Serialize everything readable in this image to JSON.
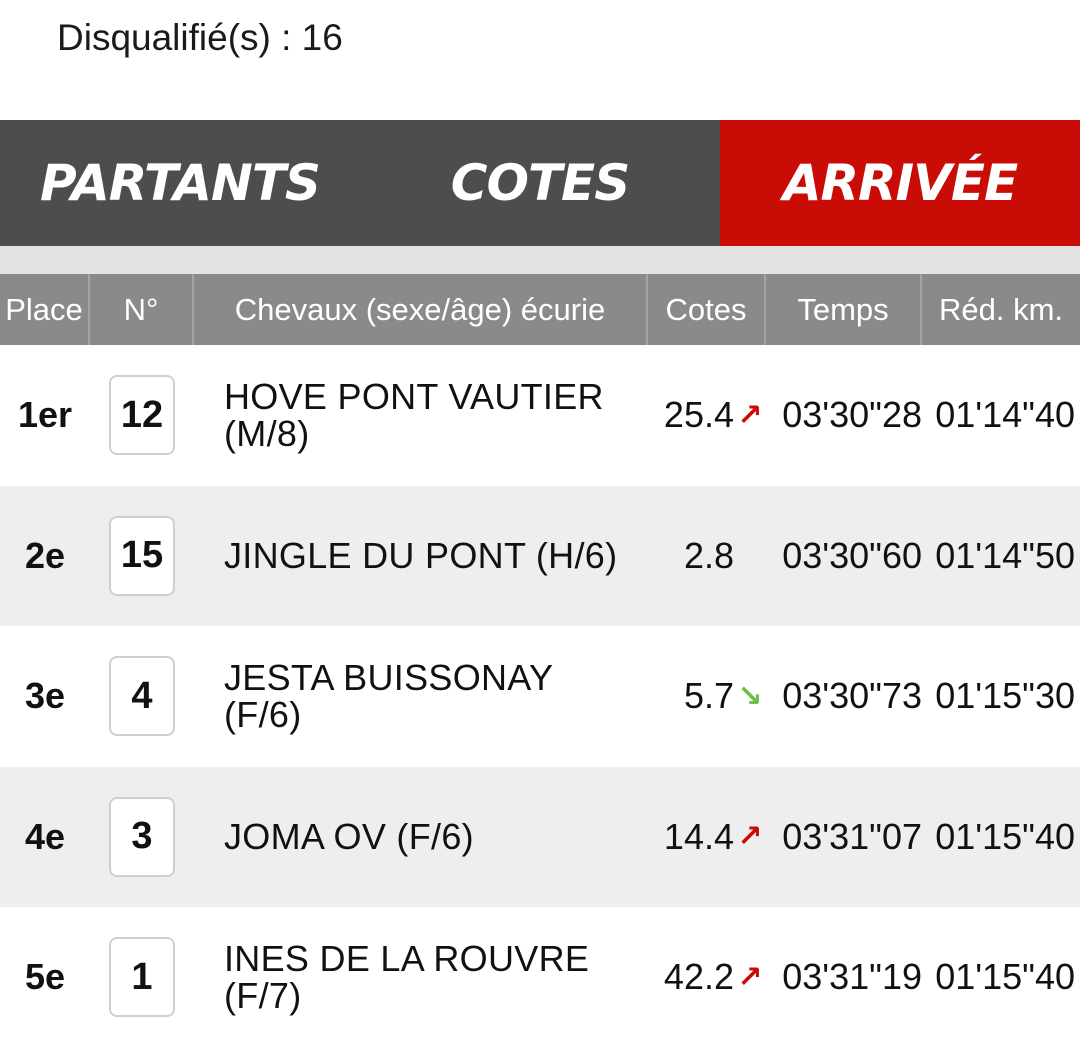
{
  "summary": {
    "disqualified_label": "Disqualifié(s) : 16"
  },
  "tabs": [
    {
      "label": "PARTANTS",
      "active": false
    },
    {
      "label": "COTES",
      "active": false
    },
    {
      "label": "ARRIVÉE",
      "active": true
    }
  ],
  "table": {
    "headers": {
      "place": "Place",
      "num": "N°",
      "name": "Chevaux (sexe/âge) écurie",
      "cote": "Cotes",
      "temps": "Temps",
      "red": "Réd. km."
    },
    "rows": [
      {
        "place": "1er",
        "num": "12",
        "name": "HOVE PONT VAUTIER (M/8)",
        "cote": "25.4",
        "trend": "up",
        "temps": "03'30\"28",
        "red": "01'14\"40"
      },
      {
        "place": "2e",
        "num": "15",
        "name": "JINGLE DU PONT (H/6)",
        "cote": "2.8",
        "trend": "none",
        "temps": "03'30\"60",
        "red": "01'14\"50"
      },
      {
        "place": "3e",
        "num": "4",
        "name": "JESTA BUISSONAY (F/6)",
        "cote": "5.7",
        "trend": "down",
        "temps": "03'30\"73",
        "red": "01'15\"30"
      },
      {
        "place": "4e",
        "num": "3",
        "name": "JOMA OV (F/6)",
        "cote": "14.4",
        "trend": "up",
        "temps": "03'31\"07",
        "red": "01'15\"40"
      },
      {
        "place": "5e",
        "num": "1",
        "name": "INES DE LA ROUVRE (F/7)",
        "cote": "42.2",
        "trend": "up",
        "temps": "03'31\"19",
        "red": "01'15\"40"
      }
    ]
  },
  "colors": {
    "tab_bg": "#4d4d4d",
    "tab_active": "#c90c05",
    "header_bg": "#8a8a8a",
    "trend_up": "#c90c05",
    "trend_down": "#6cc04a"
  }
}
